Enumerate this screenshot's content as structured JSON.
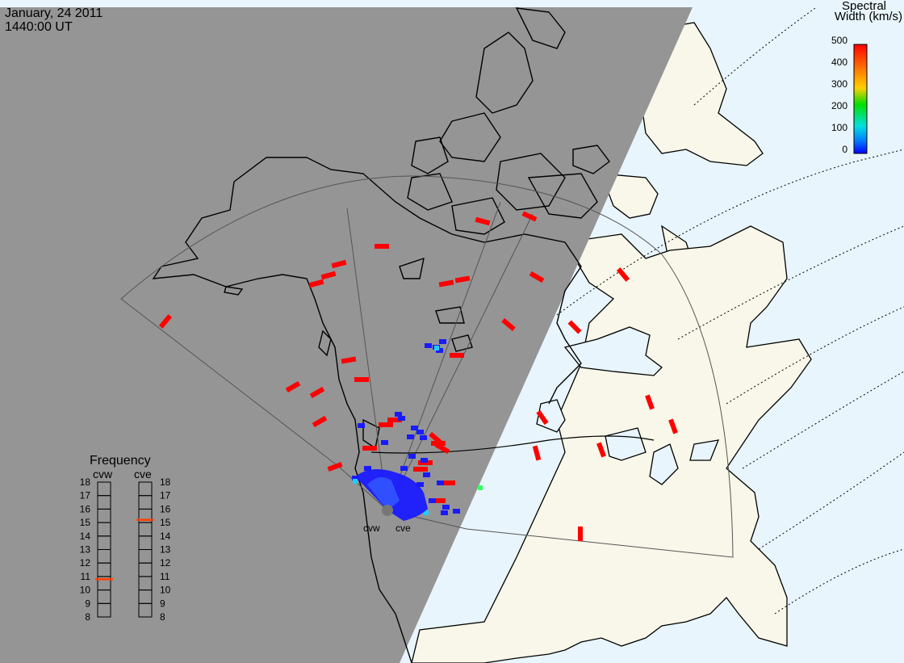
{
  "header": {
    "date": "January, 24 2011",
    "time": "1440:00 UT"
  },
  "colorbar": {
    "title_line1": "Spectral",
    "title_line2": "Width (km/s)",
    "ticks": [
      "500",
      "400",
      "300",
      "200",
      "100",
      "0"
    ],
    "colors": [
      "#ff0000",
      "#ff8000",
      "#ffff00",
      "#00ff00",
      "#00ffff",
      "#0000ff"
    ]
  },
  "frequency_panel": {
    "title": "Frequency",
    "radars": [
      {
        "label": "cvw",
        "value_mhz": 10.8,
        "marker_color": "#ff4000"
      },
      {
        "label": "cve",
        "value_mhz": 15.2,
        "marker_color": "#ff4000"
      }
    ],
    "ticks": [
      "18",
      "17",
      "16",
      "15",
      "14",
      "13",
      "12",
      "11",
      "10",
      "9",
      "8"
    ]
  },
  "stations": [
    {
      "label": "cvw"
    },
    {
      "label": "cve"
    }
  ],
  "colors": {
    "night_shade": "#959595",
    "land": "#f8f7e9",
    "ocean": "#e8f5fc",
    "scatter_high": "#ff0000",
    "scatter_low": "#1a1aff",
    "scatter_mid": "#22ccff"
  }
}
